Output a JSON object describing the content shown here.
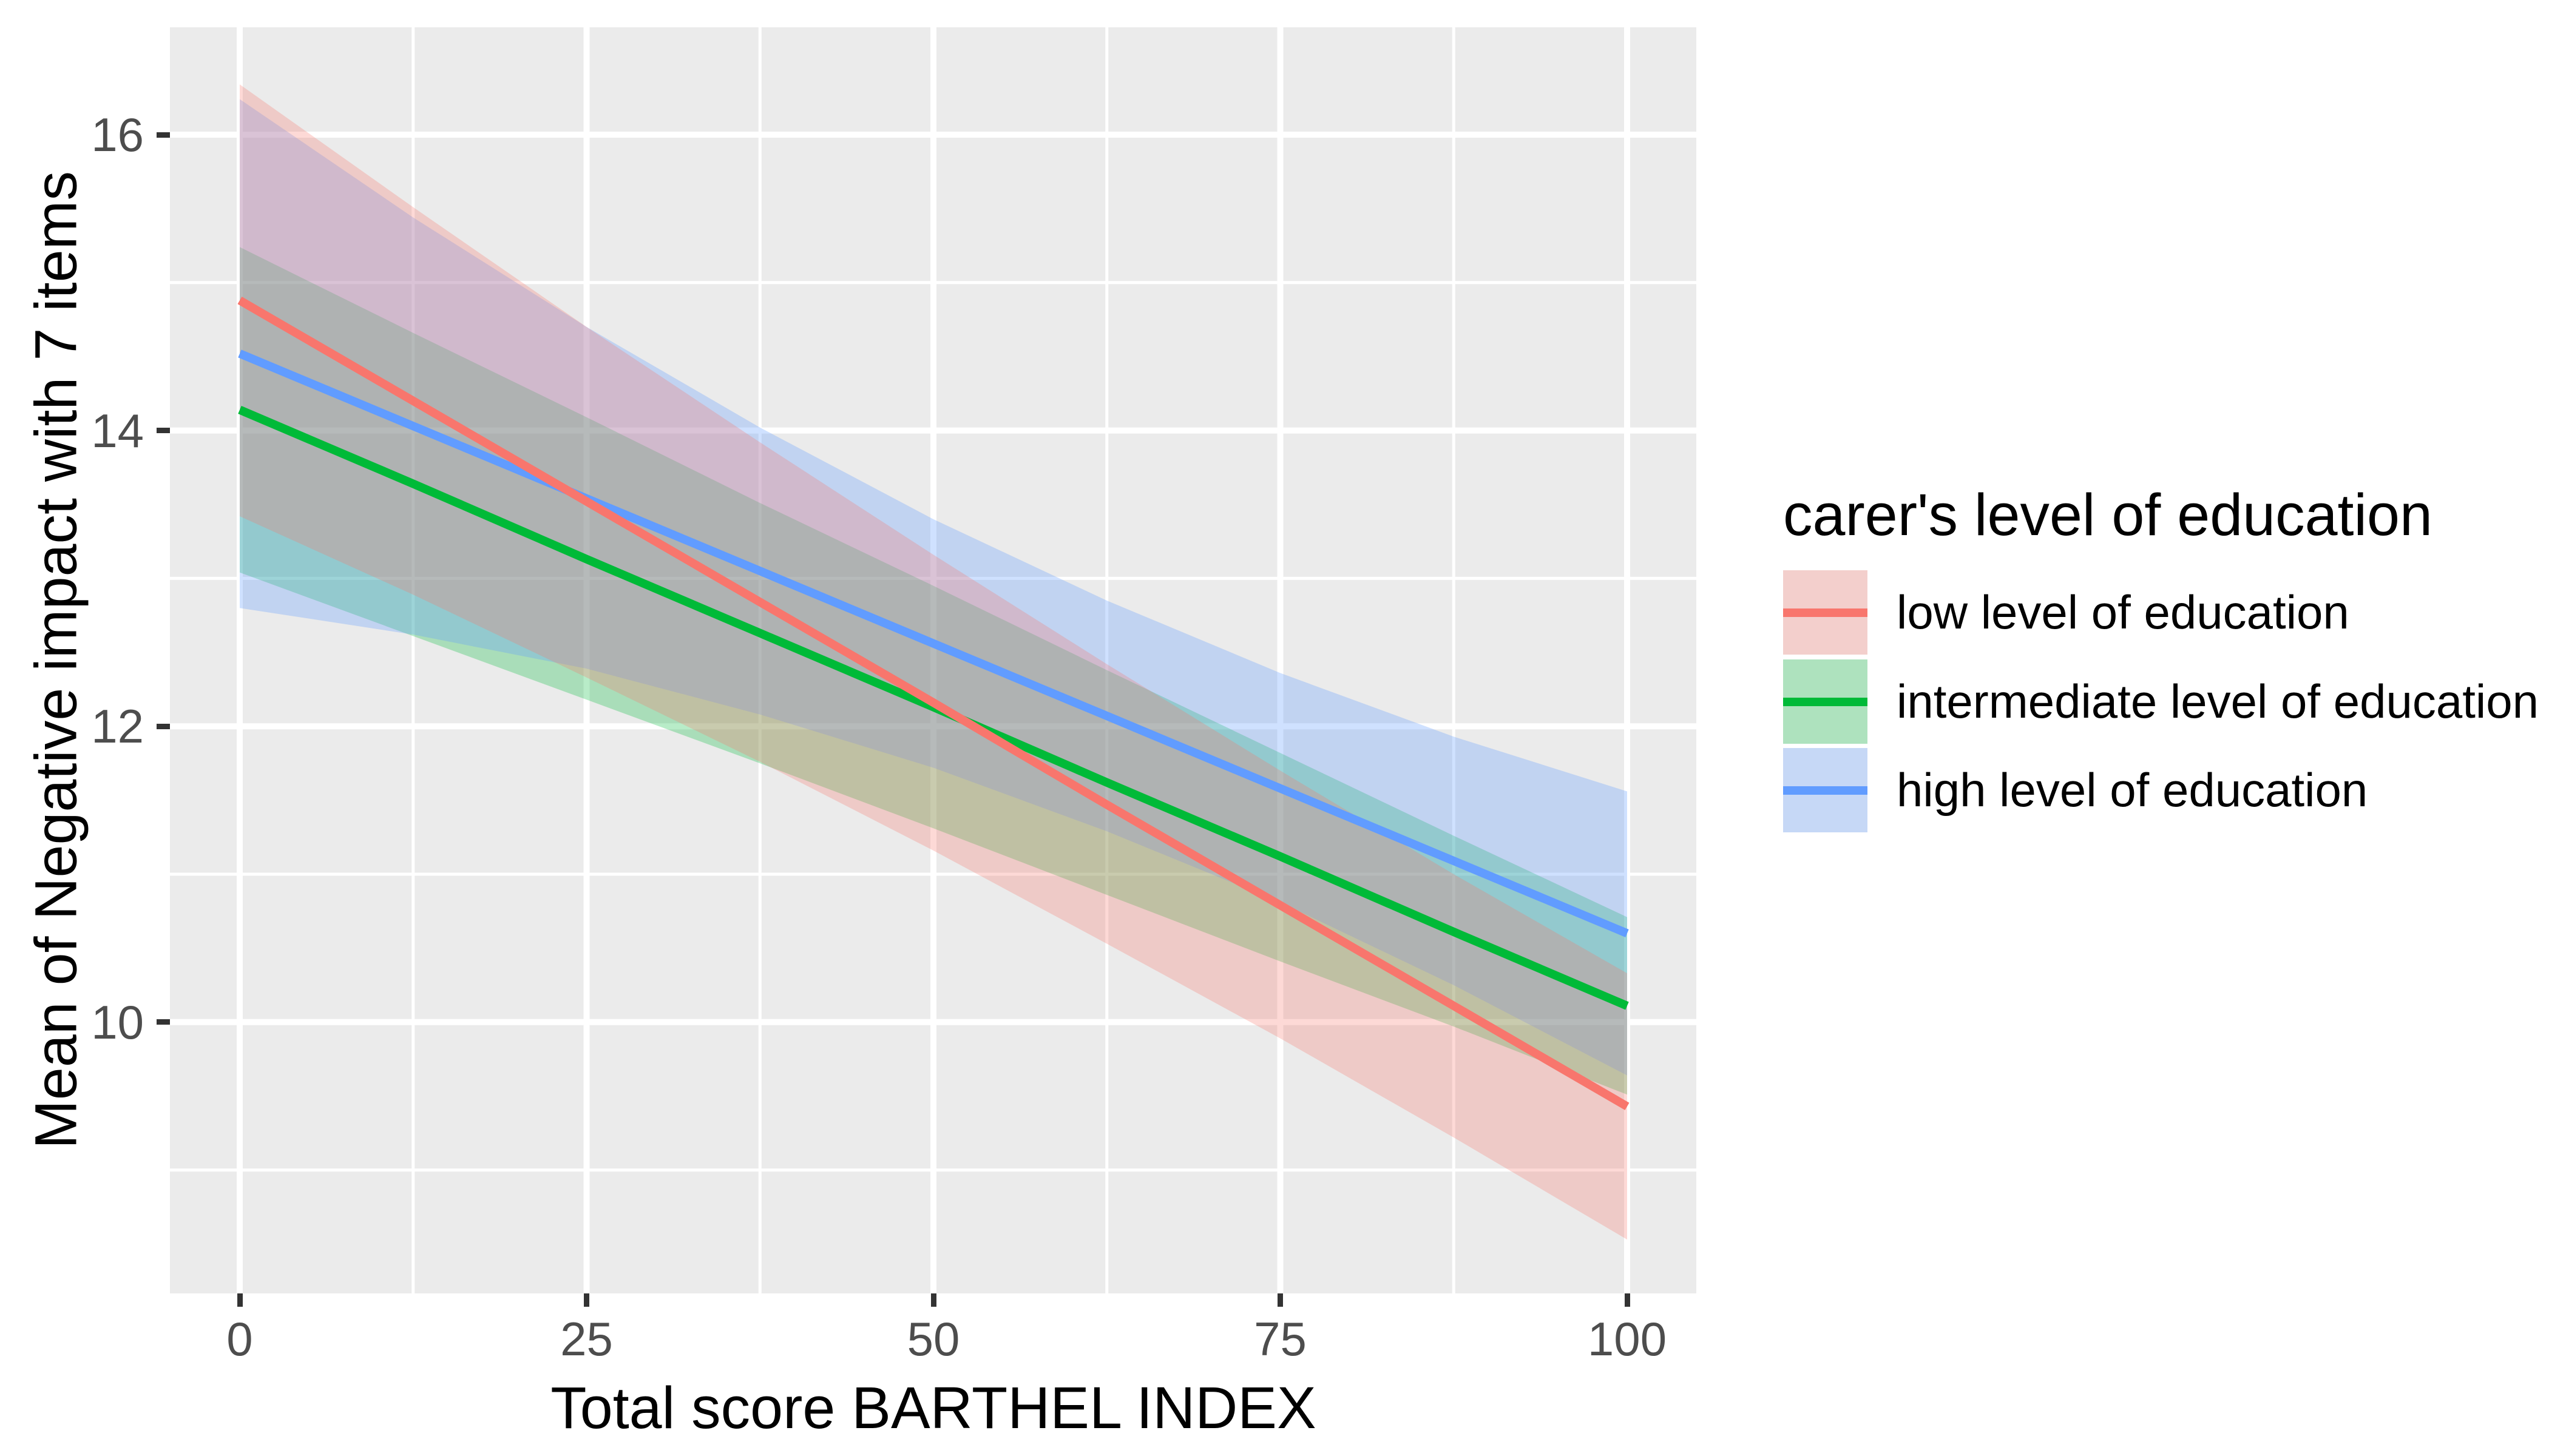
{
  "figure": {
    "background": "#FFFFFF"
  },
  "panel": {
    "background": "#EBEBEB",
    "grid_color": "#FFFFFF",
    "tick_color": "#333333",
    "tick_label_color": "#4D4D4D"
  },
  "axes": {
    "x": {
      "title": "Total score BARTHEL INDEX",
      "domain": [
        -5,
        105
      ],
      "ticks": [
        {
          "value": 0,
          "label": "0"
        },
        {
          "value": 25,
          "label": "25"
        },
        {
          "value": 50,
          "label": "50"
        },
        {
          "value": 75,
          "label": "75"
        },
        {
          "value": 100,
          "label": "100"
        }
      ],
      "minor": [
        12.5,
        37.5,
        62.5,
        87.5
      ]
    },
    "y": {
      "title": "Mean of Negative impact with 7 items",
      "domain": [
        8.17,
        16.73
      ],
      "ticks": [
        {
          "value": 16,
          "label": "16"
        },
        {
          "value": 14,
          "label": "14"
        },
        {
          "value": 12,
          "label": "12"
        },
        {
          "value": 10,
          "label": "10"
        }
      ],
      "minor": [
        9,
        11,
        13,
        15
      ]
    }
  },
  "legend": {
    "title": "carer's level of education",
    "items": [
      {
        "label": "low level of education",
        "color": "#F8766D",
        "fill": "rgba(248,118,109,0.28)"
      },
      {
        "label": "intermediate level of education",
        "color": "#00BA38",
        "fill": "rgba(0,186,56,0.28)"
      },
      {
        "label": "high level of education",
        "color": "#619CFF",
        "fill": "rgba(97,156,255,0.30)"
      }
    ]
  },
  "chart_data": {
    "type": "line",
    "title": "",
    "xlabel": "Total score BARTHEL INDEX",
    "ylabel": "Mean of Negative impact with 7 items",
    "xlim": [
      -5,
      105
    ],
    "ylim": [
      8.17,
      16.73
    ],
    "grid": "major-and-minor",
    "legend_position": "right",
    "x": [
      0,
      12.5,
      25,
      37.5,
      50,
      62.5,
      75,
      87.5,
      100
    ],
    "series": [
      {
        "name": "intermediate level of education",
        "color": "#00BA38",
        "ribbon_fill": "rgba(0,186,56,0.28)",
        "fit": [
          14.14,
          13.64,
          13.13,
          12.63,
          12.13,
          11.62,
          11.12,
          10.61,
          10.11
        ],
        "upper": [
          15.24,
          14.66,
          14.09,
          13.51,
          12.95,
          12.38,
          11.82,
          11.26,
          10.71
        ],
        "lower": [
          13.04,
          12.61,
          12.18,
          11.75,
          11.31,
          10.86,
          10.41,
          9.97,
          9.51
        ]
      },
      {
        "name": "high level of education",
        "color": "#619CFF",
        "ribbon_fill": "rgba(97,156,255,0.30)",
        "fit": [
          14.52,
          14.03,
          13.54,
          13.05,
          12.56,
          12.07,
          11.58,
          11.09,
          10.6
        ],
        "upper": [
          16.24,
          15.44,
          14.7,
          14.02,
          13.4,
          12.85,
          12.36,
          11.93,
          11.56
        ],
        "lower": [
          12.8,
          12.62,
          12.39,
          12.08,
          11.72,
          11.29,
          10.81,
          10.25,
          9.64
        ]
      },
      {
        "name": "low level of education",
        "color": "#F8766D",
        "ribbon_fill": "rgba(248,118,109,0.28)",
        "fit": [
          14.88,
          14.2,
          13.52,
          12.84,
          12.16,
          11.47,
          10.79,
          10.11,
          9.43
        ],
        "upper": [
          16.34,
          15.51,
          14.7,
          13.92,
          13.16,
          12.42,
          11.7,
          11.0,
          10.33
        ],
        "lower": [
          13.42,
          12.89,
          12.33,
          11.76,
          11.16,
          10.53,
          9.89,
          9.22,
          8.53
        ]
      }
    ]
  }
}
